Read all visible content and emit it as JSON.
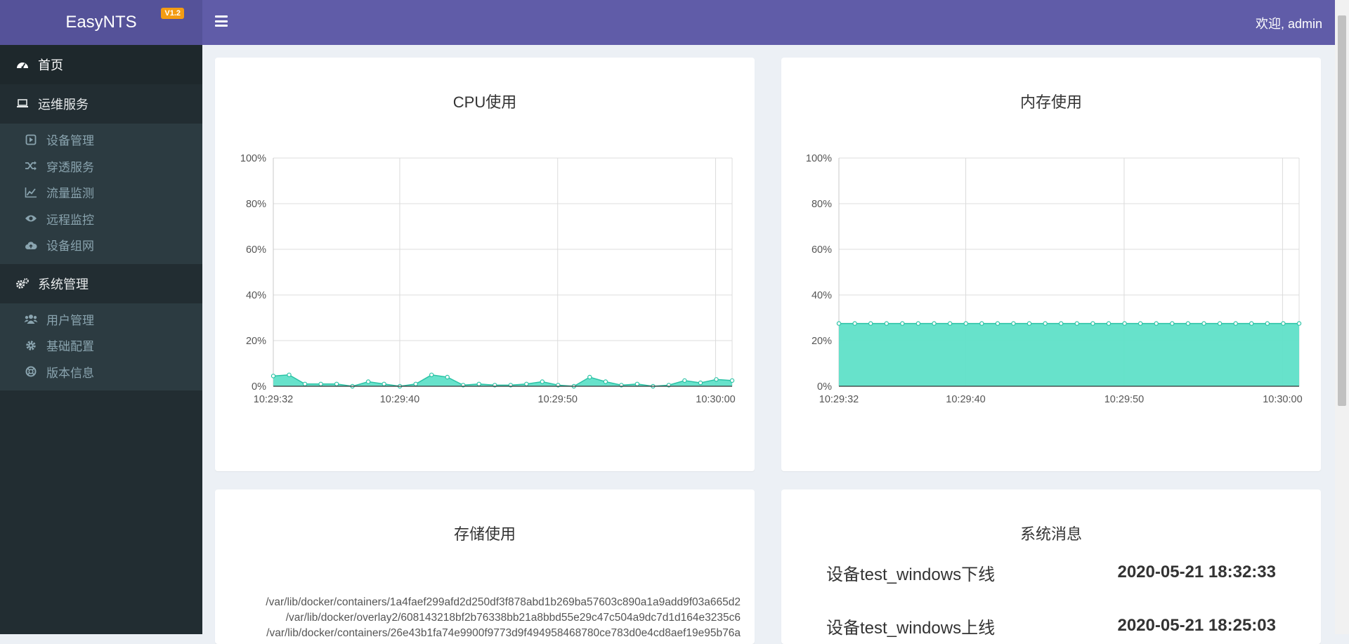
{
  "app": {
    "name": "EasyNTS",
    "version": "V1.2"
  },
  "header": {
    "welcome": "欢迎, admin"
  },
  "sidebar": {
    "home": {
      "label": "首页",
      "icon": "dashboard-icon"
    },
    "sections": [
      {
        "label": "运维服务",
        "icon": "laptop-icon",
        "items": [
          {
            "label": "设备管理",
            "icon": "play-square-icon"
          },
          {
            "label": "穿透服务",
            "icon": "random-icon"
          },
          {
            "label": "流量监测",
            "icon": "line-chart-icon"
          },
          {
            "label": "远程监控",
            "icon": "eye-icon"
          },
          {
            "label": "设备组网",
            "icon": "cloud-upload-icon"
          }
        ]
      },
      {
        "label": "系统管理",
        "icon": "cogs-icon",
        "items": [
          {
            "label": "用户管理",
            "icon": "users-icon"
          },
          {
            "label": "基础配置",
            "icon": "gear-icon"
          },
          {
            "label": "版本信息",
            "icon": "lifebuoy-icon"
          }
        ]
      }
    ]
  },
  "cpu_card": {
    "title": "CPU使用"
  },
  "mem_card": {
    "title": "内存使用"
  },
  "storage_card": {
    "title": "存储使用",
    "paths": [
      "/var/lib/docker/containers/1a4faef299afd2d250df3f878abd1b269ba57603c890a1a9add9f03a665d2",
      "/var/lib/docker/overlay2/608143218bf2b76338bb21a8bbd55e29c47c504a9dc7d1d164e3235c6",
      "/var/lib/docker/containers/26e43b1fa74e9900f9773d9f494958468780ce783d0e4cd8aef19e95b76a"
    ]
  },
  "messages_card": {
    "title": "系统消息",
    "items": [
      {
        "message": "设备test_windows下线",
        "time": "2020-05-21 18:32:33"
      },
      {
        "message": "设备test_windows上线",
        "time": "2020-05-21 18:25:03"
      }
    ]
  },
  "colors": {
    "fill": "#5fe0c8",
    "stroke": "#2cc3a6",
    "header": "#605ca8",
    "sidebar": "#222d32"
  },
  "chart_data": [
    {
      "type": "area",
      "title": "CPU使用",
      "y_ticks": [
        "0%",
        "20%",
        "40%",
        "60%",
        "80%",
        "100%"
      ],
      "x_ticks": [
        "10:29:32",
        "10:29:40",
        "10:29:50",
        "10:30:00"
      ],
      "ylim": [
        0,
        100
      ],
      "grid": true,
      "values": [
        4.5,
        5,
        1,
        1,
        1,
        0,
        2,
        1,
        0,
        1,
        5,
        4,
        0.5,
        1,
        0.5,
        0.5,
        1,
        2,
        0.5,
        0,
        4,
        2,
        0.5,
        1,
        0,
        0.5,
        2.5,
        1.5,
        3,
        2.5
      ]
    },
    {
      "type": "area",
      "title": "内存使用",
      "y_ticks": [
        "0%",
        "20%",
        "40%",
        "60%",
        "80%",
        "100%"
      ],
      "x_ticks": [
        "10:29:32",
        "10:29:40",
        "10:29:50",
        "10:30:00"
      ],
      "ylim": [
        0,
        100
      ],
      "grid": true,
      "values": [
        27.5,
        27.5,
        27.5,
        27.5,
        27.5,
        27.5,
        27.5,
        27.5,
        27.5,
        27.5,
        27.5,
        27.5,
        27.5,
        27.5,
        27.5,
        27.5,
        27.5,
        27.5,
        27.5,
        27.5,
        27.5,
        27.5,
        27.5,
        27.5,
        27.5,
        27.5,
        27.5,
        27.5,
        27.5,
        27.5
      ]
    }
  ]
}
